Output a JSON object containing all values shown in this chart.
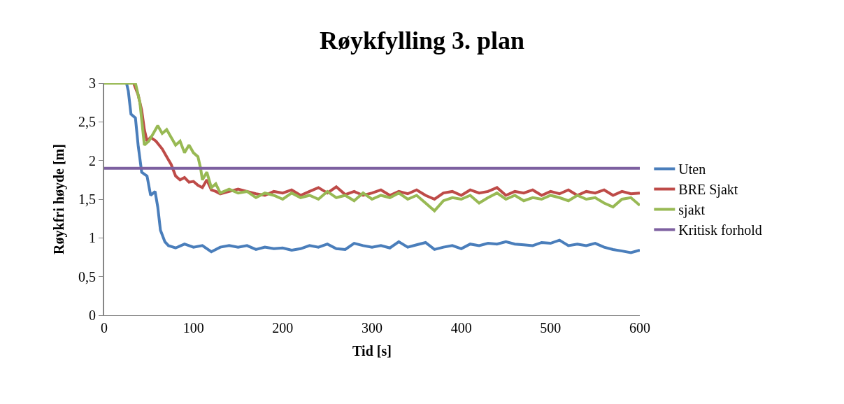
{
  "chart_data": {
    "type": "line",
    "title": "Røykfylling 3. plan",
    "xlabel": "Tid [s]",
    "ylabel": "Røykfri høyde [m]",
    "xlim": [
      0,
      600
    ],
    "xticks": [
      0,
      100,
      200,
      300,
      400,
      500,
      600
    ],
    "ylim": [
      0,
      3
    ],
    "yticks": [
      0,
      {
        "value": 0.5,
        "label": "0,5"
      },
      1,
      {
        "value": 1.5,
        "label": "1,5"
      },
      2,
      {
        "value": 2.5,
        "label": "2,5"
      },
      3
    ],
    "legend": "right",
    "marker": "none",
    "line_style": "solid",
    "series": [
      {
        "name": "Uten",
        "color": "#4a7ebb",
        "x": [
          0,
          25,
          27,
          30,
          35,
          38,
          42,
          48,
          52,
          57,
          60,
          63,
          68,
          72,
          80,
          90,
          100,
          110,
          120,
          130,
          140,
          150,
          160,
          170,
          180,
          190,
          200,
          210,
          220,
          230,
          240,
          250,
          260,
          270,
          280,
          290,
          300,
          310,
          320,
          330,
          340,
          350,
          360,
          370,
          380,
          390,
          400,
          410,
          420,
          430,
          440,
          450,
          460,
          470,
          480,
          490,
          500,
          510,
          520,
          530,
          540,
          550,
          560,
          570,
          580,
          590,
          600
        ],
        "values": [
          3,
          3,
          2.9,
          2.6,
          2.55,
          2.2,
          1.85,
          1.8,
          1.55,
          1.6,
          1.4,
          1.1,
          0.95,
          0.9,
          0.87,
          0.92,
          0.88,
          0.9,
          0.82,
          0.88,
          0.9,
          0.88,
          0.9,
          0.85,
          0.88,
          0.86,
          0.87,
          0.84,
          0.86,
          0.9,
          0.88,
          0.92,
          0.86,
          0.85,
          0.93,
          0.9,
          0.88,
          0.9,
          0.87,
          0.95,
          0.88,
          0.91,
          0.94,
          0.85,
          0.88,
          0.9,
          0.86,
          0.92,
          0.9,
          0.93,
          0.92,
          0.95,
          0.92,
          0.91,
          0.9,
          0.94,
          0.93,
          0.97,
          0.9,
          0.92,
          0.9,
          0.93,
          0.88,
          0.85,
          0.83,
          0.81,
          0.84
        ]
      },
      {
        "name": "BRE Sjakt",
        "color": "#be4b48",
        "x": [
          0,
          33,
          38,
          42,
          45,
          48,
          52,
          58,
          65,
          70,
          75,
          80,
          85,
          90,
          95,
          100,
          105,
          110,
          115,
          120,
          125,
          130,
          140,
          150,
          160,
          170,
          180,
          190,
          200,
          210,
          220,
          230,
          240,
          250,
          260,
          270,
          280,
          290,
          300,
          310,
          320,
          330,
          340,
          350,
          360,
          370,
          380,
          390,
          400,
          410,
          420,
          430,
          440,
          450,
          460,
          470,
          480,
          490,
          500,
          510,
          520,
          530,
          540,
          550,
          560,
          570,
          580,
          590,
          600
        ],
        "values": [
          3,
          3,
          2.85,
          2.65,
          2.4,
          2.25,
          2.3,
          2.25,
          2.15,
          2.05,
          1.95,
          1.8,
          1.75,
          1.78,
          1.72,
          1.73,
          1.68,
          1.65,
          1.75,
          1.62,
          1.6,
          1.57,
          1.6,
          1.63,
          1.6,
          1.57,
          1.55,
          1.6,
          1.58,
          1.62,
          1.55,
          1.6,
          1.65,
          1.58,
          1.66,
          1.56,
          1.6,
          1.55,
          1.58,
          1.62,
          1.55,
          1.6,
          1.57,
          1.62,
          1.55,
          1.5,
          1.58,
          1.6,
          1.55,
          1.62,
          1.58,
          1.6,
          1.65,
          1.55,
          1.6,
          1.58,
          1.62,
          1.55,
          1.6,
          1.57,
          1.62,
          1.55,
          1.6,
          1.58,
          1.62,
          1.55,
          1.6,
          1.57,
          1.58
        ]
      },
      {
        "name": "sjakt",
        "color": "#98b954",
        "x": [
          0,
          35,
          40,
          45,
          50,
          55,
          60,
          65,
          70,
          75,
          80,
          85,
          90,
          95,
          100,
          105,
          108,
          110,
          115,
          120,
          125,
          130,
          140,
          150,
          160,
          170,
          180,
          190,
          200,
          210,
          220,
          230,
          240,
          250,
          260,
          270,
          280,
          290,
          300,
          310,
          320,
          330,
          340,
          350,
          360,
          370,
          380,
          390,
          400,
          410,
          420,
          430,
          440,
          450,
          460,
          470,
          480,
          490,
          500,
          510,
          520,
          530,
          540,
          550,
          560,
          570,
          580,
          590,
          600
        ],
        "values": [
          3,
          3,
          2.75,
          2.2,
          2.25,
          2.35,
          2.45,
          2.35,
          2.4,
          2.3,
          2.2,
          2.25,
          2.1,
          2.2,
          2.1,
          2.05,
          1.9,
          1.75,
          1.85,
          1.65,
          1.7,
          1.58,
          1.63,
          1.58,
          1.6,
          1.52,
          1.58,
          1.55,
          1.5,
          1.58,
          1.52,
          1.55,
          1.5,
          1.6,
          1.52,
          1.55,
          1.48,
          1.58,
          1.5,
          1.55,
          1.52,
          1.58,
          1.5,
          1.55,
          1.45,
          1.35,
          1.48,
          1.52,
          1.5,
          1.55,
          1.45,
          1.52,
          1.58,
          1.5,
          1.55,
          1.48,
          1.52,
          1.5,
          1.55,
          1.52,
          1.48,
          1.55,
          1.5,
          1.52,
          1.45,
          1.4,
          1.5,
          1.52,
          1.42
        ]
      },
      {
        "name": "Kritisk forhold",
        "color": "#7d60a0",
        "x": [
          0,
          600
        ],
        "values": [
          1.9,
          1.9
        ]
      }
    ]
  }
}
